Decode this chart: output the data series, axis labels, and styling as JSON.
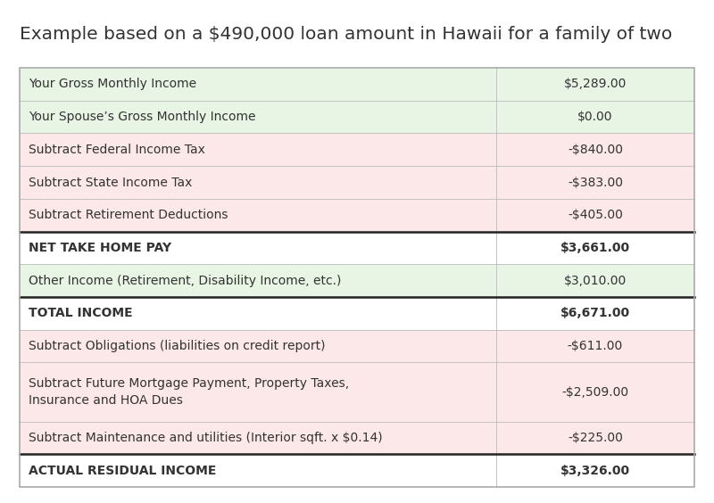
{
  "title": "Example based on a $490,000 loan amount in Hawaii for a family of two",
  "title_fontsize": 14.5,
  "rows": [
    {
      "label": "Your Gross Monthly Income",
      "value": "$5,289.00",
      "label_bg": "#e8f4e4",
      "value_bg": "#e8f4e4",
      "bold": false,
      "border_bottom": false,
      "multiline": false
    },
    {
      "label": "Your Spouse’s Gross Monthly Income",
      "value": "$0.00",
      "label_bg": "#e8f4e4",
      "value_bg": "#e8f4e4",
      "bold": false,
      "border_bottom": false,
      "multiline": false
    },
    {
      "label": "Subtract Federal Income Tax",
      "value": "-$840.00",
      "label_bg": "#fce8e8",
      "value_bg": "#fce8e8",
      "bold": false,
      "border_bottom": false,
      "multiline": false
    },
    {
      "label": "Subtract State Income Tax",
      "value": "-$383.00",
      "label_bg": "#fce8e8",
      "value_bg": "#fce8e8",
      "bold": false,
      "border_bottom": false,
      "multiline": false
    },
    {
      "label": "Subtract Retirement Deductions",
      "value": "-$405.00",
      "label_bg": "#fce8e8",
      "value_bg": "#fce8e8",
      "bold": false,
      "border_bottom": true,
      "multiline": false
    },
    {
      "label": "NET TAKE HOME PAY",
      "value": "$3,661.00",
      "label_bg": "#ffffff",
      "value_bg": "#ffffff",
      "bold": true,
      "border_bottom": false,
      "multiline": false
    },
    {
      "label": "Other Income (Retirement, Disability Income, etc.)",
      "value": "$3,010.00",
      "label_bg": "#e8f4e4",
      "value_bg": "#e8f4e4",
      "bold": false,
      "border_bottom": true,
      "multiline": false
    },
    {
      "label": "TOTAL INCOME",
      "value": "$6,671.00",
      "label_bg": "#ffffff",
      "value_bg": "#ffffff",
      "bold": true,
      "border_bottom": false,
      "multiline": false
    },
    {
      "label": "Subtract Obligations (liabilities on credit report)",
      "value": "-$611.00",
      "label_bg": "#fce8e8",
      "value_bg": "#fce8e8",
      "bold": false,
      "border_bottom": false,
      "multiline": false
    },
    {
      "label": "Subtract Future Mortgage Payment, Property Taxes,\nInsurance and HOA Dues",
      "value": "-$2,509.00",
      "label_bg": "#fce8e8",
      "value_bg": "#fce8e8",
      "bold": false,
      "border_bottom": false,
      "multiline": true
    },
    {
      "label": "Subtract Maintenance and utilities (Interior sqft. x $0.14)",
      "value": "-$225.00",
      "label_bg": "#fce8e8",
      "value_bg": "#fce8e8",
      "bold": false,
      "border_bottom": true,
      "multiline": false
    },
    {
      "label": "ACTUAL RESIDUAL INCOME",
      "value": "$3,326.00",
      "label_bg": "#ffffff",
      "value_bg": "#ffffff",
      "bold": true,
      "border_bottom": false,
      "multiline": false
    }
  ],
  "text_color": "#333333",
  "label_fontsize": 10.0,
  "value_fontsize": 10.0,
  "bold_border_color": "#222222",
  "light_border_color": "#bbbbbb",
  "outer_border_color": "#aaaaaa"
}
